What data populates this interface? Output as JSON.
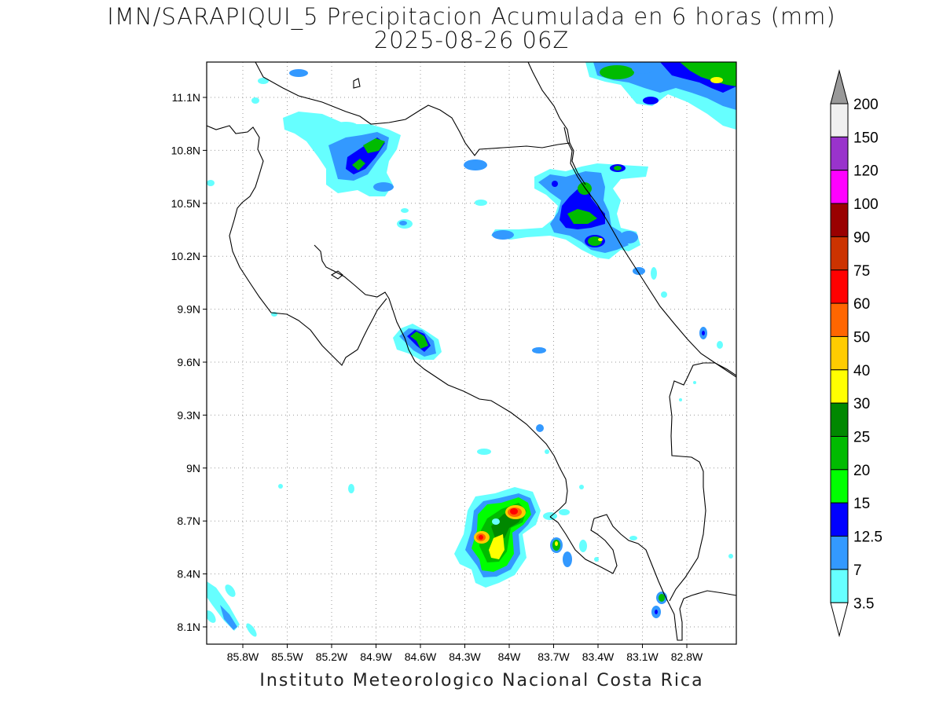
{
  "title": {
    "line1": "IMN/SARAPIQUI_5 Precipitacion Acumulada en 6 horas (mm)",
    "line2": "2025-08-26 06Z"
  },
  "credit": "Instituto Meteorologico Nacional Costa Rica",
  "map": {
    "lat_labels": [
      "11.1N",
      "10.8N",
      "10.5N",
      "10.2N",
      "9.9N",
      "9.6N",
      "9.3N",
      "9N",
      "8.7N",
      "8.4N",
      "8.1N"
    ],
    "lon_labels": [
      "85.8W",
      "85.5W",
      "85.2W",
      "84.9W",
      "84.6W",
      "84.3W",
      "84W",
      "83.7W",
      "83.4W",
      "83.1W",
      "82.8W"
    ],
    "grid": "dotted"
  },
  "colorbar": {
    "labels": [
      "200",
      "150",
      "120",
      "100",
      "90",
      "75",
      "60",
      "50",
      "40",
      "30",
      "25",
      "20",
      "15",
      "12.5",
      "7",
      "3.5"
    ],
    "colors": [
      "#f0f0f0",
      "#9933cc",
      "#ff00ff",
      "#990000",
      "#cc3300",
      "#ff0000",
      "#ff6600",
      "#ffcc00",
      "#ffff00",
      "#008800",
      "#00bb00",
      "#00ff00",
      "#0000ff",
      "#3399ff",
      "#66ffff"
    ],
    "top_arrow_color": "#999999",
    "bottom_arrow_color": "#ffffff"
  }
}
